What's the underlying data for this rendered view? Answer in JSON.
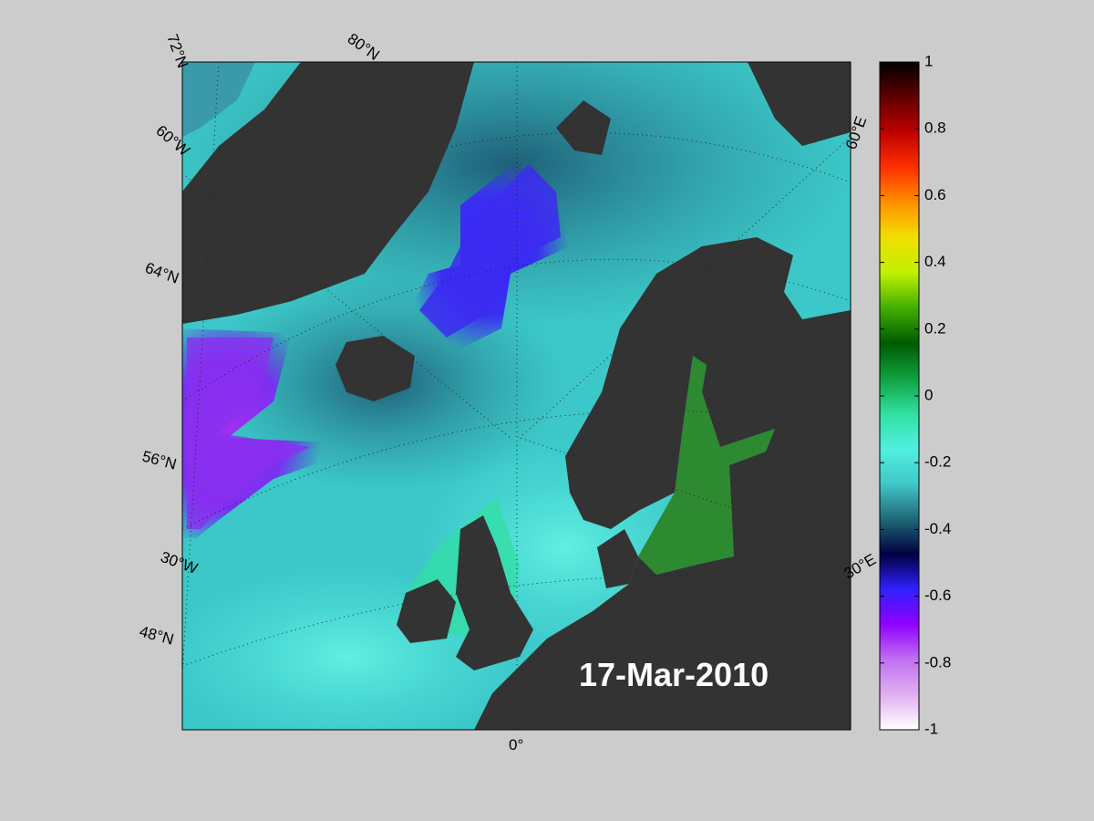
{
  "map": {
    "date_label": "17-Mar-2010",
    "graticule_labels": [
      "72°N",
      "80°N",
      "60°W",
      "64°N",
      "56°N",
      "30°W",
      "48°N",
      "0°",
      "60°E",
      "30°E"
    ],
    "colorbar": {
      "lim": [
        -1,
        1
      ],
      "ticks": [
        -1,
        -0.8,
        -0.6,
        -0.4,
        -0.2,
        0,
        0.2,
        0.4,
        0.6,
        0.8,
        1
      ],
      "colormap": [
        "#ffffff",
        "#e0b0f0",
        "#c070f0",
        "#9000ff",
        "#3020ff",
        "#000040",
        "#206878",
        "#40c8c8",
        "#50f0e0",
        "#30e0a0",
        "#10a040",
        "#005a00",
        "#40b000",
        "#c0f000",
        "#f0e000",
        "#ff9000",
        "#ff3000",
        "#c00000",
        "#600000",
        "#000000"
      ]
    }
  }
}
